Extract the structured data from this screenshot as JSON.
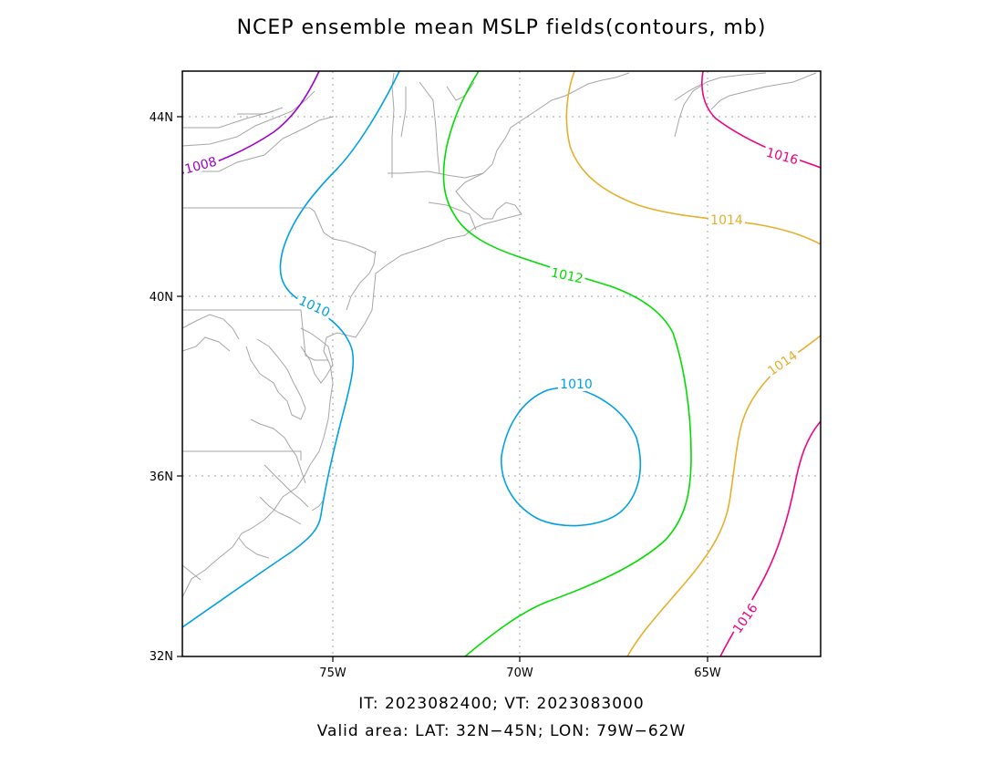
{
  "title": "NCEP ensemble mean MSLP fields(contours, mb)",
  "footer": {
    "line1": "IT: 2023082400; VT: 2023083000",
    "line2": "Valid area: LAT: 32N−45N; LON: 79W−62W"
  },
  "map": {
    "lat_ticks": [
      "32N",
      "36N",
      "40N",
      "44N"
    ],
    "lon_ticks": [
      "75W",
      "70W",
      "65W"
    ]
  },
  "contours": {
    "c1008": {
      "label": "1008",
      "color": "#a000c8"
    },
    "c1010": {
      "label": "1010",
      "color": "#00a0e6"
    },
    "c1012": {
      "label": "1012",
      "color": "#00dc00"
    },
    "c1014": {
      "label": "1014",
      "color": "#e6af2d"
    },
    "c1016": {
      "label": "1016",
      "color": "#f00082"
    }
  }
}
